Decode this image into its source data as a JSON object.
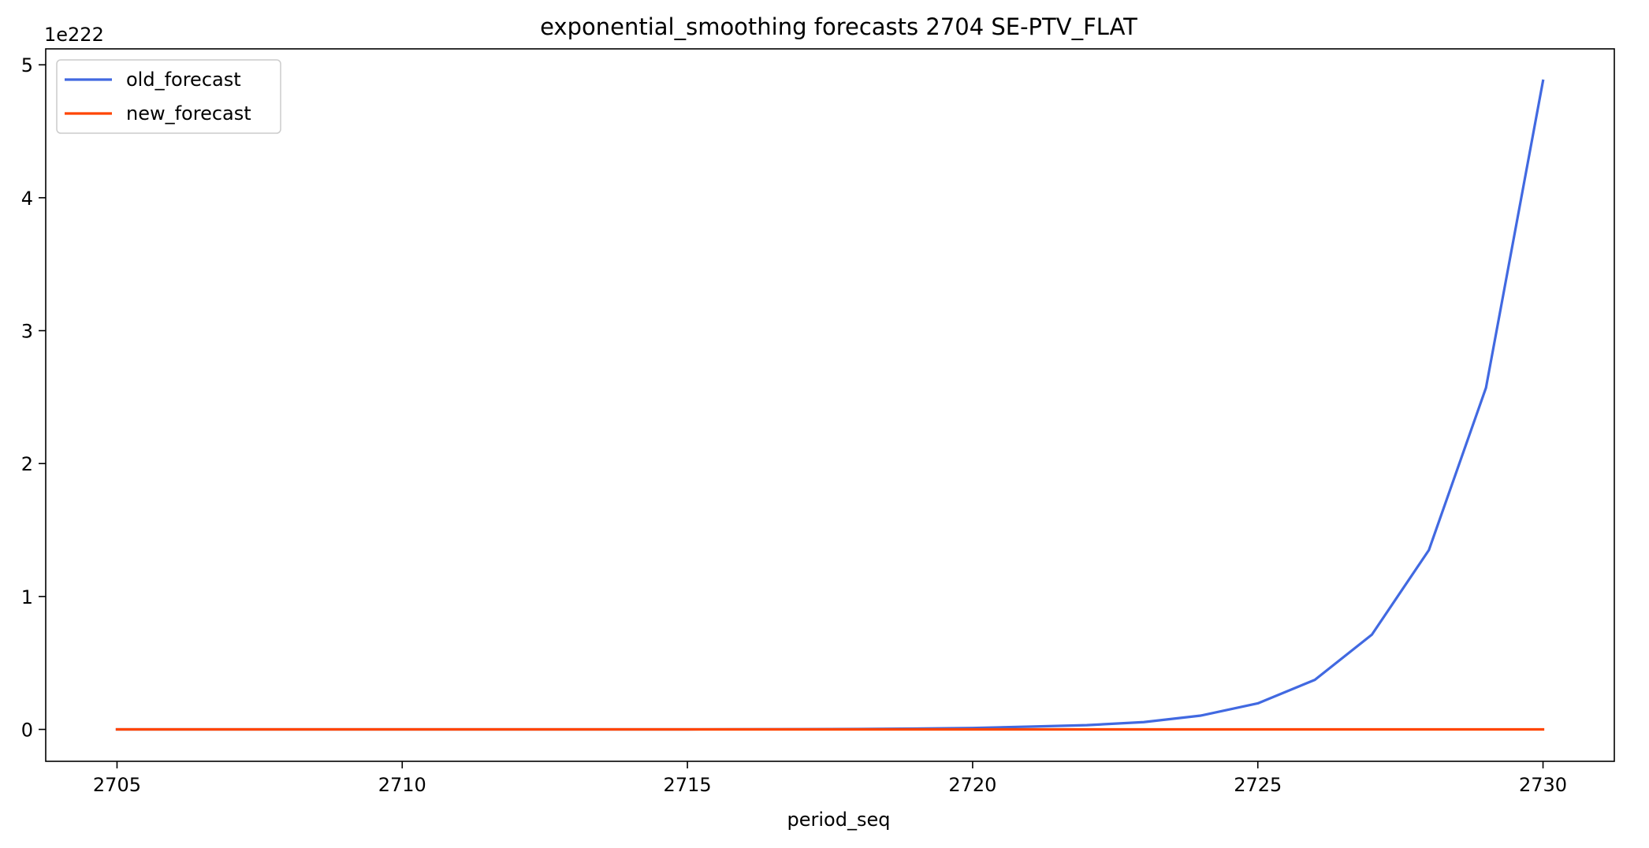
{
  "chart_data": {
    "type": "line",
    "title": "exponential_smoothing forecasts 2704 SE-PTV_FLAT",
    "xlabel": "period_seq",
    "ylabel": "",
    "y_multiplier_label": "1e222",
    "xlim": [
      2703.75,
      2731.25
    ],
    "ylim": [
      -0.24,
      5.12
    ],
    "x_ticks": [
      2705,
      2710,
      2715,
      2720,
      2725,
      2730
    ],
    "y_ticks": [
      0,
      1,
      2,
      3,
      4,
      5
    ],
    "grid": false,
    "legend_position": "upper-left",
    "x": [
      2705,
      2706,
      2707,
      2708,
      2709,
      2710,
      2711,
      2712,
      2713,
      2714,
      2715,
      2716,
      2717,
      2718,
      2719,
      2720,
      2721,
      2722,
      2723,
      2724,
      2725,
      2726,
      2727,
      2728,
      2729,
      2730
    ],
    "series": [
      {
        "name": "old_forecast",
        "color": "#4169e1",
        "values": [
          0,
          0,
          0,
          0,
          0,
          0,
          0,
          0,
          0,
          0,
          0.0003,
          0.0007,
          0.0015,
          0.003,
          0.006,
          0.011,
          0.021,
          0.032,
          0.055,
          0.104,
          0.196,
          0.373,
          0.713,
          1.35,
          2.57,
          4.88
        ]
      },
      {
        "name": "new_forecast",
        "color": "#ff4500",
        "values": [
          0,
          0,
          0,
          0,
          0,
          0,
          0,
          0,
          0,
          0,
          0,
          0,
          0,
          0,
          0,
          0,
          0,
          0,
          0,
          0,
          0,
          0,
          0,
          0,
          0,
          0
        ]
      }
    ]
  }
}
